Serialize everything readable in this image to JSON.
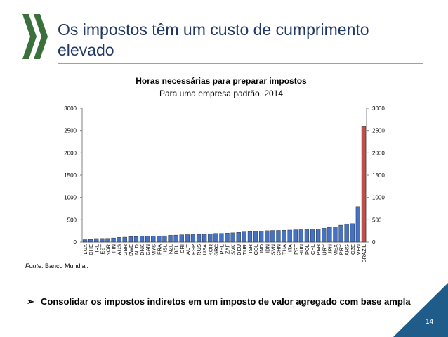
{
  "slide": {
    "title": "Os impostos têm um custo de cumprimento elevado",
    "source_label": "Fonte",
    "source_text": ": Banco Mundial.",
    "bullet_marker": "➢",
    "bullet_text": "Consolidar os impostos indiretos em um imposto de valor agregado com base ampla",
    "page_number": "14"
  },
  "colors": {
    "title": "#1f3864",
    "bar": "#4472c4",
    "bar_highlight": "#c0504d",
    "logo": "#3b6f3b",
    "corner": "#1f5c8a"
  },
  "chart_data": {
    "type": "bar",
    "title": "Horas necessárias para preparar impostos",
    "subtitle": "Para uma empresa padrão, 2014",
    "categories": [
      "LUX",
      "CHE",
      "IRL",
      "EST",
      "NOR",
      "FIN",
      "AUS",
      "GBR",
      "SWE",
      "NLD",
      "DNK",
      "CAN",
      "MYS",
      "FRA",
      "ISL",
      "NZL",
      "BEL",
      "CRI",
      "AUT",
      "ESP",
      "RUS",
      "USA",
      "KOR",
      "GRC",
      "PHL",
      "ZAF",
      "SVK",
      "DEU",
      "TUR",
      "ISR",
      "COL",
      "IND",
      "IDN",
      "SVN",
      "CHN",
      "THA",
      "ITA",
      "PRT",
      "HUN",
      "POL",
      "CHL",
      "PER",
      "URY",
      "JPN",
      "MEX",
      "PRY",
      "ARG",
      "CZE",
      "VEN",
      "BRAZIL"
    ],
    "values": [
      55,
      63,
      80,
      81,
      83,
      93,
      105,
      110,
      122,
      123,
      130,
      131,
      133,
      137,
      140,
      152,
      156,
      163,
      166,
      167,
      168,
      175,
      187,
      193,
      193,
      200,
      207,
      218,
      226,
      235,
      239,
      243,
      254,
      260,
      261,
      264,
      269,
      275,
      277,
      286,
      291,
      293,
      310,
      330,
      334,
      378,
      405,
      413,
      792,
      2600
    ],
    "highlight": "BRAZIL",
    "ylim": [
      0,
      3000
    ],
    "yticks": [
      0,
      500,
      1000,
      1500,
      2000,
      2500,
      3000
    ],
    "secondary_axis": true,
    "grid": false
  }
}
